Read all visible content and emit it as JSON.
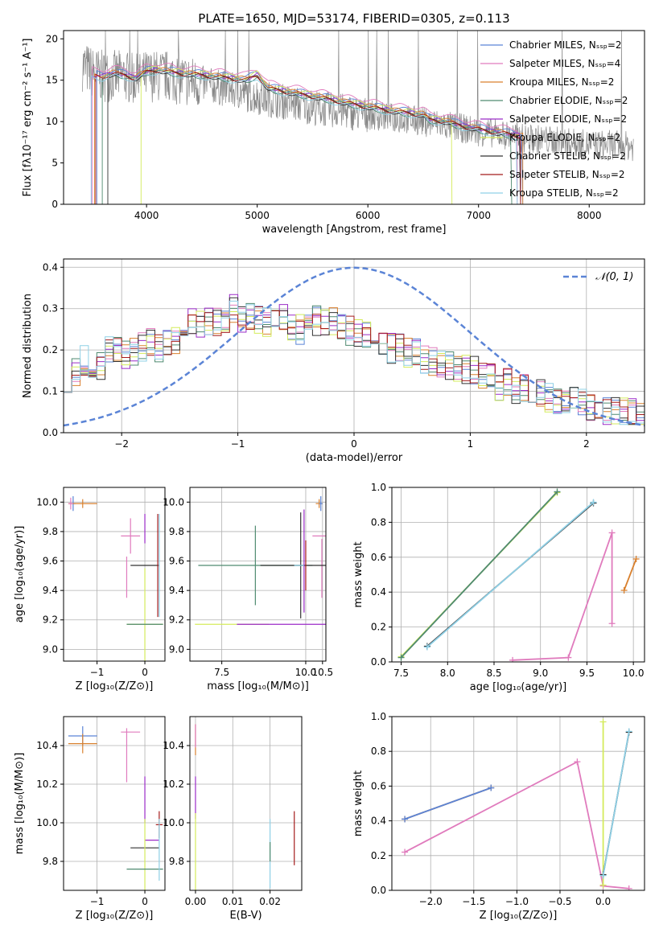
{
  "colors": {
    "chabrier_miles": "#5b84d6",
    "salpeter_miles": "#e07bbd",
    "kroupa_miles": "#d9812f",
    "chabrier_elodie": "#4f8a70",
    "salpeter_elodie": "#9b2cc8",
    "kroupa_elodie": "#d4eb5c",
    "chabrier_stelib": "#333333",
    "salpeter_stelib": "#a51c1c",
    "kroupa_stelib": "#8fd0e6",
    "data": "#888888",
    "normal": "#5b84d6"
  },
  "chart_data": [
    {
      "id": "spectrum",
      "type": "line",
      "title": "PLATE=1650, MJD=53174, FIBERID=0305, z=0.113",
      "xlabel": "wavelength [Angstrom, rest frame]",
      "ylabel": "Flux [fλ10⁻¹⁷ erg cm⁻² s⁻¹ A⁻¹]",
      "xlim": [
        3250,
        8500
      ],
      "ylim": [
        0,
        21
      ],
      "xticks": [
        4000,
        5000,
        6000,
        7000,
        8000
      ],
      "yticks": [
        0,
        5,
        10,
        15,
        20
      ],
      "legend_position": "top-right",
      "legend": [
        "Chabrier MILES, Nₛₛₚ=2",
        "Salpeter MILES, Nₛₛₚ=4",
        "Kroupa MILES, Nₛₛₚ=2",
        "Chabrier ELODIE, Nₛₛₚ=2",
        "Salpeter ELODIE, Nₛₛₚ=2",
        "Kroupa ELODIE, Nₛₛₚ=2",
        "Chabrier STELIB, Nₛₛₚ=2",
        "Salpeter STELIB, Nₛₛₚ=2",
        "Kroupa STELIB, Nₛₛₚ=2"
      ],
      "data_continuum": [
        [
          3420,
          16.8
        ],
        [
          3500,
          16
        ],
        [
          3600,
          15.5
        ],
        [
          3700,
          15.5
        ],
        [
          3800,
          15.5
        ],
        [
          3900,
          15
        ],
        [
          4000,
          15.5
        ],
        [
          4200,
          15.5
        ],
        [
          4400,
          14.8
        ],
        [
          4600,
          14.3
        ],
        [
          4800,
          13.7
        ],
        [
          5000,
          13
        ],
        [
          5200,
          12.5
        ],
        [
          5400,
          12
        ],
        [
          5600,
          11.5
        ],
        [
          5800,
          11.2
        ],
        [
          6000,
          10.8
        ],
        [
          6200,
          10.5
        ],
        [
          6400,
          10.2
        ],
        [
          6600,
          9.8
        ],
        [
          6800,
          9.3
        ],
        [
          7000,
          8.8
        ],
        [
          7200,
          8.5
        ],
        [
          7400,
          8
        ],
        [
          7600,
          7.8
        ],
        [
          7800,
          7.5
        ],
        [
          8000,
          7.2
        ],
        [
          8200,
          7.2
        ],
        [
          8400,
          7
        ]
      ],
      "model_continuum": [
        [
          3500,
          15.6
        ],
        [
          3600,
          15.4
        ],
        [
          3700,
          15.8
        ],
        [
          3800,
          15.6
        ],
        [
          3900,
          15.2
        ],
        [
          4000,
          16
        ],
        [
          4100,
          16.2
        ],
        [
          4300,
          15.8
        ],
        [
          4500,
          15.6
        ],
        [
          4700,
          15.3
        ],
        [
          4900,
          15
        ],
        [
          5000,
          15.6
        ],
        [
          5100,
          14
        ],
        [
          5300,
          13.5
        ],
        [
          5600,
          12.8
        ],
        [
          5900,
          12
        ],
        [
          6200,
          11.3
        ],
        [
          6500,
          10.8
        ],
        [
          6560,
          10.2
        ],
        [
          6700,
          10
        ],
        [
          6900,
          9.3
        ],
        [
          7100,
          8.8
        ],
        [
          7300,
          8.4
        ],
        [
          7400,
          8.2
        ]
      ],
      "model_start": [
        3550,
        3510,
        3530,
        3600,
        3500,
        3950,
        3650,
        3540,
        3500
      ],
      "model_end": [
        7400,
        7350,
        7400,
        7300,
        7380,
        6760,
        7380,
        7380,
        7350
      ],
      "model_offset": [
        0.4,
        0.8,
        0.2,
        -0.2,
        0.1,
        0.3,
        -0.1,
        0.0,
        -0.3
      ]
    },
    {
      "id": "residuals",
      "type": "line",
      "xlabel": "(data-model)/error",
      "ylabel": "Normed distribution",
      "xlim": [
        -2.5,
        2.5
      ],
      "ylim": [
        0,
        0.42
      ],
      "xticks": [
        -2,
        -1,
        0,
        1,
        2
      ],
      "yticks": [
        0.0,
        0.1,
        0.2,
        0.3,
        0.4
      ],
      "legend_position": "top-right",
      "normal_label": "𝒩(0, 1)",
      "bin_width": 0.1,
      "bins_start": -2.5,
      "mean_profile": [
        0.135,
        0.15,
        0.175,
        0.165,
        0.16,
        0.2,
        0.195,
        0.19,
        0.2,
        0.205,
        0.22,
        0.2,
        0.215,
        0.225,
        0.255,
        0.27,
        0.26,
        0.27,
        0.27,
        0.275,
        0.3,
        0.28,
        0.285,
        0.27,
        0.27,
        0.28,
        0.28,
        0.26,
        0.25,
        0.26,
        0.27,
        0.26,
        0.27,
        0.26,
        0.245,
        0.245,
        0.235,
        0.23,
        0.22,
        0.205,
        0.205,
        0.195,
        0.19,
        0.175,
        0.175,
        0.17,
        0.165,
        0.16,
        0.15,
        0.15,
        0.135,
        0.13,
        0.115,
        0.12,
        0.105,
        0.105,
        0.1,
        0.095,
        0.085,
        0.08,
        0.075,
        0.075,
        0.07,
        0.065,
        0.06,
        0.055,
        0.05,
        0.05,
        0.045,
        0.04
      ]
    },
    {
      "id": "age_vs_z",
      "type": "scatter",
      "xlabel": "Z [log₁₀(Z/Z⊙)]",
      "ylabel": "age  [log₁₀(age/yr)]",
      "xlim": [
        -1.7,
        0.42
      ],
      "ylim": [
        8.92,
        10.1
      ],
      "xticks": [
        -1,
        0
      ],
      "yticks": [
        9.0,
        9.2,
        9.4,
        9.6,
        9.8,
        10.0
      ],
      "points": [
        {
          "series": "chabrier_miles",
          "x": -1.5,
          "y": 9.99,
          "xerr": 0.05,
          "yerr": 0.05
        },
        {
          "series": "kroupa_miles",
          "x": -1.3,
          "y": 9.99,
          "xerr": 0.3,
          "yerr": 0.03
        },
        {
          "series": "salpeter_miles",
          "x": -1.55,
          "y": 9.99,
          "xerr": 0.05,
          "yerr": 0.04
        },
        {
          "series": "salpeter_miles",
          "x": -0.3,
          "y": 9.77,
          "xerr": 0.2,
          "yerr": 0.12
        },
        {
          "series": "salpeter_miles",
          "x": -0.38,
          "y": 9.49,
          "xerr": 0.0,
          "yerr": 0.14
        },
        {
          "series": "chabrier_stelib",
          "x": 0.0,
          "y": 9.57,
          "xerr": 0.3,
          "yerr": 0.0
        },
        {
          "series": "salpeter_elodie",
          "x": 0.0,
          "y": 9.82,
          "xerr": 0.0,
          "yerr": 0.1
        },
        {
          "series": "kroupa_elodie",
          "x": 0.0,
          "y": 9.17,
          "xerr": 0.38,
          "yerr": 0.38
        },
        {
          "series": "chabrier_elodie",
          "x": 0.0,
          "y": 9.17,
          "xerr": 0.38,
          "yerr": 0.0
        },
        {
          "series": "kroupa_stelib",
          "x": 0.3,
          "y": 9.57,
          "xerr": 0.0,
          "yerr": 0.35
        },
        {
          "series": "salpeter_stelib",
          "x": 0.27,
          "y": 9.57,
          "xerr": 0.0,
          "yerr": 0.35
        }
      ]
    },
    {
      "id": "age_vs_mass",
      "type": "scatter",
      "xlabel": "mass [log₁₀(M/M⊙)]",
      "xlim": [
        6.55,
        10.6
      ],
      "ylim": [
        8.92,
        10.1
      ],
      "xticks": [
        7.5,
        10.0,
        10.5
      ],
      "xticklabels": [
        "7.5",
        "10.0",
        "10.5"
      ],
      "yticks": [
        9.0,
        9.2,
        9.4,
        9.6,
        9.8,
        10.0
      ],
      "points": [
        {
          "series": "kroupa_miles",
          "x": 10.4,
          "y": 9.99,
          "xerr": 0.1,
          "yerr": 0.03
        },
        {
          "series": "chabrier_miles",
          "x": 10.45,
          "y": 9.99,
          "xerr": 0.05,
          "yerr": 0.05
        },
        {
          "series": "salpeter_miles",
          "x": 10.45,
          "y": 9.77,
          "xerr": 0.25,
          "yerr": 0.0
        },
        {
          "series": "salpeter_miles",
          "x": 10.48,
          "y": 9.55,
          "xerr": 0.0,
          "yerr": 0.2
        },
        {
          "series": "chabrier_elodie",
          "x": 8.5,
          "y": 9.57,
          "xerr": 1.7,
          "yerr": 0.27
        },
        {
          "series": "chabrier_stelib",
          "x": 9.85,
          "y": 9.57,
          "xerr": 1.2,
          "yerr": 0.36
        },
        {
          "series": "salpeter_elodie",
          "x": 9.95,
          "y": 9.6,
          "xerr": 0.0,
          "yerr": 0.35
        },
        {
          "series": "salpeter_stelib",
          "x": 10.0,
          "y": 9.57,
          "xerr": 0.0,
          "yerr": 0.17
        },
        {
          "series": "kroupa_stelib",
          "x": 9.8,
          "y": 9.57,
          "xerr": 0.0,
          "yerr": 0.0
        },
        {
          "series": "kroupa_elodie",
          "x": 7.8,
          "y": 9.17,
          "xerr": 1.1,
          "yerr": 0.0
        },
        {
          "series": "salpeter_elodie",
          "x": 9.45,
          "y": 9.17,
          "xerr": 1.5,
          "yerr": 0.0
        }
      ]
    },
    {
      "id": "mass_weight_vs_age",
      "type": "line",
      "xlabel": "age  [log₁₀(age/yr)]",
      "ylabel": "mass weight",
      "xlim": [
        7.4,
        10.12
      ],
      "ylim": [
        0,
        1
      ],
      "xticks": [
        7.5,
        8.0,
        8.5,
        9.0,
        9.5,
        10.0
      ],
      "yticks": [
        0.0,
        0.2,
        0.4,
        0.6,
        0.8,
        1.0
      ],
      "lines": [
        {
          "series": "kroupa_elodie",
          "x": [
            7.5,
            9.18
          ],
          "y": [
            0.03,
            0.97
          ]
        },
        {
          "series": "chabrier_elodie",
          "x": [
            7.5,
            9.18
          ],
          "y": [
            0.025,
            0.975
          ]
        },
        {
          "series": "chabrier_stelib",
          "x": [
            7.78,
            9.57
          ],
          "y": [
            0.09,
            0.91
          ]
        },
        {
          "series": "kroupa_stelib",
          "x": [
            7.78,
            9.57
          ],
          "y": [
            0.085,
            0.915
          ]
        },
        {
          "series": "salpeter_miles",
          "x": [
            8.7,
            9.3,
            9.77,
            9.77
          ],
          "y": [
            0.01,
            0.025,
            0.74,
            0.22
          ]
        },
        {
          "series": "kroupa_miles",
          "x": [
            9.9,
            10.03
          ],
          "y": [
            0.41,
            0.59
          ]
        }
      ]
    },
    {
      "id": "mass_vs_z",
      "type": "scatter",
      "xlabel": "Z [log₁₀(Z/Z⊙)]",
      "ylabel": "mass [log₁₀(M/M⊙)]",
      "xlim": [
        -1.7,
        0.42
      ],
      "ylim": [
        9.65,
        10.55
      ],
      "xticks": [
        -1,
        0
      ],
      "yticks": [
        9.8,
        10.0,
        10.2,
        10.4
      ],
      "points": [
        {
          "series": "chabrier_miles",
          "x": -1.3,
          "y": 10.45,
          "xerr": 0.3,
          "yerr": 0.05
        },
        {
          "series": "kroupa_miles",
          "x": -1.3,
          "y": 10.41,
          "xerr": 0.3,
          "yerr": 0.05
        },
        {
          "series": "salpeter_miles",
          "x": -0.3,
          "y": 10.47,
          "xerr": 0.2,
          "yerr": 0.0
        },
        {
          "series": "salpeter_miles",
          "x": -0.38,
          "y": 10.35,
          "xerr": 0.0,
          "yerr": 0.14
        },
        {
          "series": "salpeter_elodie",
          "x": 0.0,
          "y": 10.12,
          "xerr": 0.0,
          "yerr": 0.12
        },
        {
          "series": "salpeter_stelib",
          "x": 0.3,
          "y": 9.99,
          "xerr": 0.07,
          "yerr": 0.07
        },
        {
          "series": "salpeter_elodie",
          "x": 0.15,
          "y": 9.91,
          "xerr": 0.15,
          "yerr": 0.0
        },
        {
          "series": "chabrier_stelib",
          "x": 0.0,
          "y": 9.87,
          "xerr": 0.3,
          "yerr": 0.0
        },
        {
          "series": "kroupa_elodie",
          "x": 0.0,
          "y": 9.8,
          "xerr": 0.0,
          "yerr": 0.22
        },
        {
          "series": "chabrier_elodie",
          "x": 0.0,
          "y": 9.76,
          "xerr": 0.38,
          "yerr": 0.0
        },
        {
          "series": "kroupa_stelib",
          "x": 0.3,
          "y": 9.86,
          "xerr": 0.0,
          "yerr": 0.16
        }
      ]
    },
    {
      "id": "mass_vs_ebv",
      "type": "scatter",
      "xlabel": "E(B-V)",
      "xlim": [
        -0.0015,
        0.0285
      ],
      "ylim": [
        9.65,
        10.55
      ],
      "xticks": [
        0.0,
        0.01,
        0.02
      ],
      "xticklabels": [
        "0.00",
        "0.01",
        "0.02"
      ],
      "yticks": [
        9.8,
        10.0,
        10.2,
        10.4
      ],
      "points": [
        {
          "series": "kroupa_miles",
          "x": 0.0,
          "y": 10.43,
          "xerr": 0.0,
          "yerr": 0.08
        },
        {
          "series": "salpeter_miles",
          "x": 0.0,
          "y": 10.45,
          "xerr": 0.0,
          "yerr": 0.06
        },
        {
          "series": "salpeter_elodie",
          "x": 0.0,
          "y": 10.13,
          "xerr": 0.0,
          "yerr": 0.11
        },
        {
          "series": "kroupa_elodie",
          "x": 0.0,
          "y": 9.85,
          "xerr": 0.0,
          "yerr": 0.2
        },
        {
          "series": "kroupa_stelib",
          "x": 0.02,
          "y": 9.84,
          "xerr": 0.0,
          "yerr": 0.18
        },
        {
          "series": "chabrier_elodie",
          "x": 0.02,
          "y": 9.85,
          "xerr": 0.0,
          "yerr": 0.05
        },
        {
          "series": "salpeter_stelib",
          "x": 0.0265,
          "y": 9.92,
          "xerr": 0.0,
          "yerr": 0.14
        }
      ]
    },
    {
      "id": "mass_weight_vs_z",
      "type": "line",
      "xlabel": "Z [log₁₀(Z/Z⊙)]",
      "ylabel": "mass weight",
      "xlim": [
        -2.45,
        0.48
      ],
      "ylim": [
        0,
        1
      ],
      "xticks": [
        -2.0,
        -1.5,
        -1.0,
        -0.5,
        0.0
      ],
      "yticks": [
        0.0,
        0.2,
        0.4,
        0.6,
        0.8,
        1.0
      ],
      "lines": [
        {
          "series": "kroupa_miles",
          "x": [
            -2.3,
            -1.3
          ],
          "y": [
            0.41,
            0.59
          ]
        },
        {
          "series": "chabrier_miles",
          "x": [
            -2.3,
            -1.3
          ],
          "y": [
            0.41,
            0.59
          ]
        },
        {
          "series": "salpeter_miles",
          "x": [
            -2.3,
            -0.3,
            0.0,
            0.3
          ],
          "y": [
            0.22,
            0.74,
            0.025,
            0.01
          ]
        },
        {
          "series": "kroupa_elodie",
          "x": [
            0.0,
            0.0
          ],
          "y": [
            0.03,
            0.97
          ]
        },
        {
          "series": "chabrier_stelib",
          "x": [
            0.0,
            0.3
          ],
          "y": [
            0.09,
            0.91
          ]
        },
        {
          "series": "kroupa_stelib",
          "x": [
            0.0,
            0.3
          ],
          "y": [
            0.085,
            0.915
          ]
        }
      ]
    }
  ]
}
